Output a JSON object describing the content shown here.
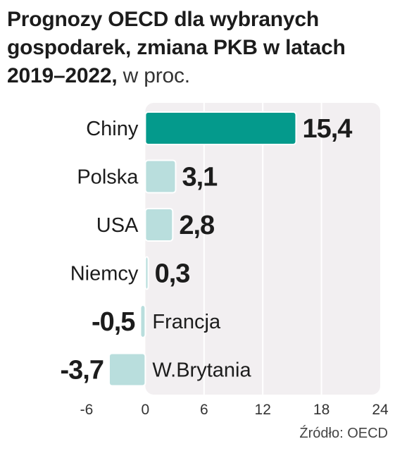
{
  "title_bold": "Prognozy OECD dla wybranych gospodarek, zmiana PKB w latach 2019–2022,",
  "title_unit": " w proc.",
  "source": "Źródło: OECD",
  "colors": {
    "highlight": "#049a8c",
    "bar": "#b9dedd",
    "panel": "#f2eff1",
    "grid": "#ffffff"
  },
  "chart_data": {
    "type": "bar",
    "orientation": "horizontal",
    "categories": [
      "Chiny",
      "Polska",
      "USA",
      "Niemcy",
      "Francja",
      "W.Brytania"
    ],
    "values": [
      15.4,
      3.1,
      2.8,
      0.3,
      -0.5,
      -3.7
    ],
    "value_labels": [
      "15,4",
      "3,1",
      "2,8",
      "0,3",
      "-0,5",
      "-3,7"
    ],
    "highlight_category": "Chiny",
    "xlim": [
      -6,
      24
    ],
    "xticks": [
      -6,
      0,
      6,
      12,
      18,
      24
    ],
    "xtick_labels": [
      "-6",
      "0",
      "6",
      "12",
      "18",
      "24"
    ],
    "grid": true
  }
}
